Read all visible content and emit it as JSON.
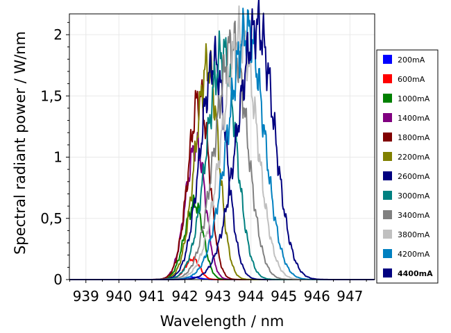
{
  "chart_data": {
    "type": "line",
    "xlabel": "Wavelength / nm",
    "ylabel": "Spectral radiant power / W/nm",
    "xlim": [
      938.5,
      947.75
    ],
    "ylim": [
      0,
      2.17
    ],
    "x_ticks": [
      "939",
      "940",
      "941",
      "942",
      "943",
      "944",
      "945",
      "946",
      "947"
    ],
    "y_ticks": [
      "0",
      "0,5",
      "1",
      "1,5",
      "2"
    ],
    "grid": true,
    "legend_position": "right",
    "series": [
      {
        "name": "200mA",
        "color": "#0000ff",
        "peak_x": 942.2,
        "peak_y": 0.02,
        "sigma": 0.3
      },
      {
        "name": "600mA",
        "color": "#ff0000",
        "peak_x": 942.25,
        "peak_y": 0.17,
        "sigma": 0.25
      },
      {
        "name": "1000mA",
        "color": "#008000",
        "peak_x": 942.3,
        "peak_y": 0.62,
        "sigma": 0.32
      },
      {
        "name": "1400mA",
        "color": "#800080",
        "peak_x": 942.35,
        "peak_y": 1.1,
        "sigma": 0.34
      },
      {
        "name": "1800mA",
        "color": "#800000",
        "peak_x": 942.45,
        "peak_y": 1.5,
        "sigma": 0.36
      },
      {
        "name": "2200mA",
        "color": "#808000",
        "peak_x": 942.7,
        "peak_y": 1.75,
        "sigma": 0.4
      },
      {
        "name": "2600mA",
        "color": "#000080",
        "peak_x": 942.9,
        "peak_y": 1.78,
        "sigma": 0.45
      },
      {
        "name": "3000mA",
        "color": "#008080",
        "peak_x": 943.15,
        "peak_y": 1.85,
        "sigma": 0.5
      },
      {
        "name": "3400mA",
        "color": "#808080",
        "peak_x": 943.45,
        "peak_y": 1.92,
        "sigma": 0.55
      },
      {
        "name": "3800mA",
        "color": "#c0c0c0",
        "peak_x": 943.7,
        "peak_y": 1.99,
        "sigma": 0.6
      },
      {
        "name": "4200mA",
        "color": "#0080c0",
        "peak_x": 943.9,
        "peak_y": 2.03,
        "sigma": 0.62
      },
      {
        "name": "4400mA",
        "color": "#000080",
        "peak_x": 944.2,
        "peak_y": 2.07,
        "sigma": 0.63,
        "legend_bold": true
      }
    ]
  }
}
